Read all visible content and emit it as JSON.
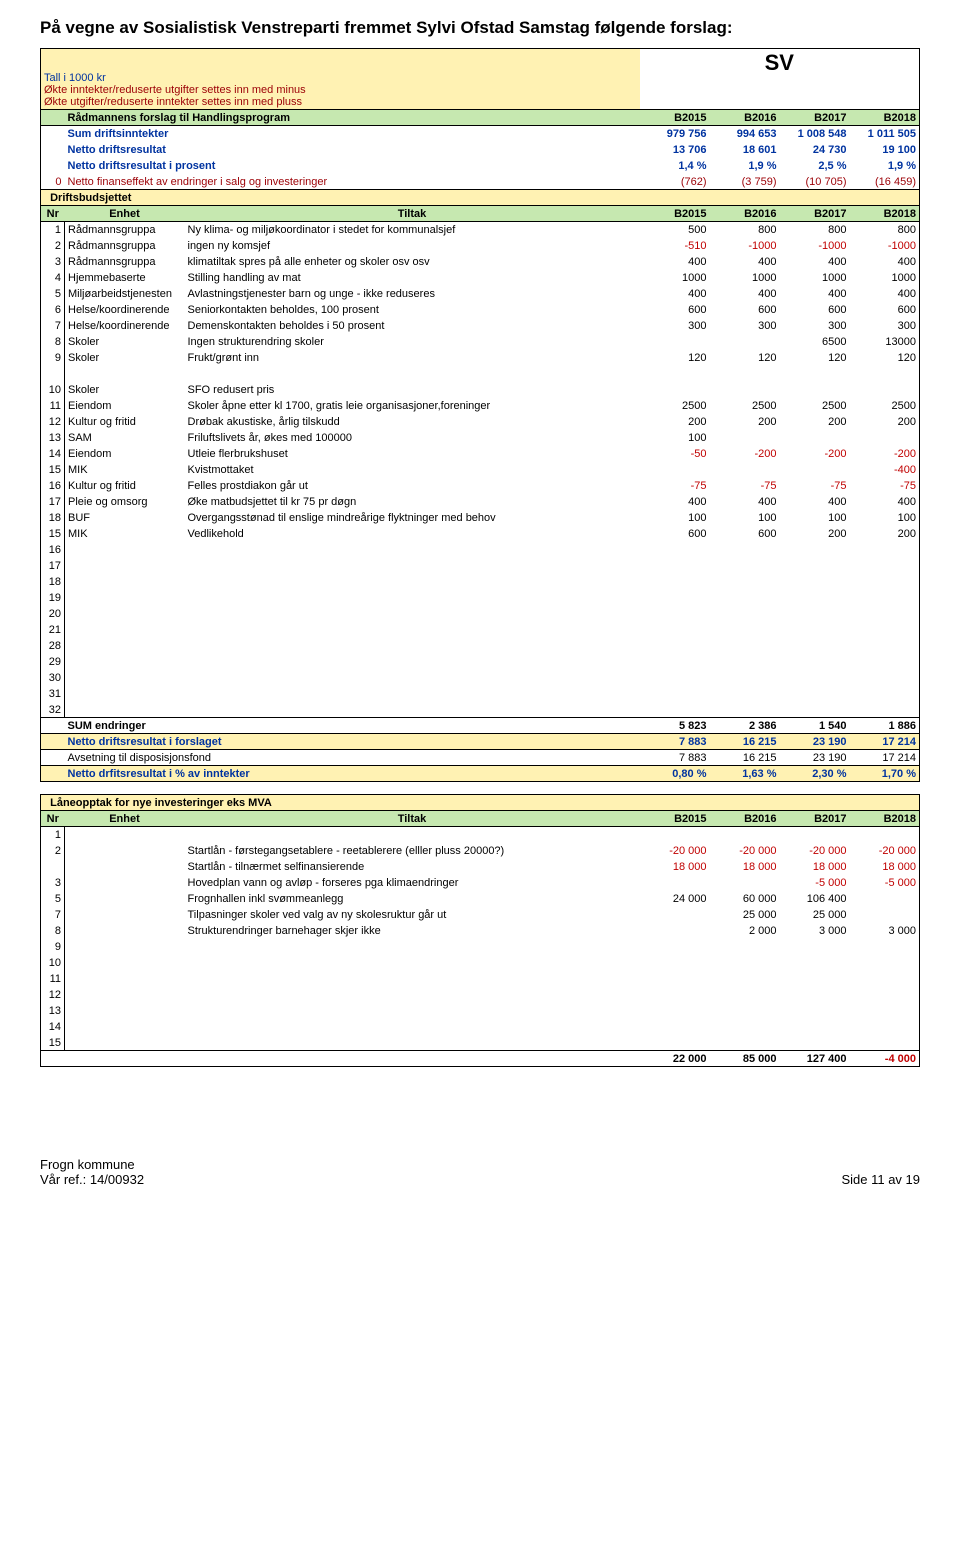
{
  "heading": "På vegne av Sosialistisk Venstreparti fremmet Sylvi Ofstad Samstag følgende forslag:",
  "sv": "SV",
  "shaded": {
    "line1": "Tall i 1000 kr",
    "line2": "Økte inntekter/reduserte utgifter settes inn med minus",
    "line3": "Økte utgifter/reduserte inntekter settes inn med pluss"
  },
  "years": {
    "y1": "B2015",
    "y2": "B2016",
    "y3": "B2017",
    "y4": "B2018"
  },
  "top": {
    "r1": {
      "label": "Rådmannens forslag til Handlingsprogram"
    },
    "r2": {
      "label": "Sum driftsinntekter",
      "v": [
        "979 756",
        "994 653",
        "1 008 548",
        "1 011 505"
      ]
    },
    "r3": {
      "label": "Netto driftsresultat",
      "v": [
        "13 706",
        "18 601",
        "24 730",
        "19 100"
      ]
    },
    "r4": {
      "label": "Netto driftsresultat i prosent",
      "v": [
        "1,4 %",
        "1,9 %",
        "2,5 %",
        "1,9 %"
      ]
    },
    "r5": {
      "n": "0",
      "label": "Netto finanseffekt av endringer i salg og investeringer",
      "v": [
        "(762)",
        "(3 759)",
        "(10 705)",
        "(16 459)"
      ]
    }
  },
  "section1_title": "Driftsbudsjettet",
  "columns": {
    "nr": "Nr",
    "enhet": "Enhet",
    "tiltak": "Tiltak"
  },
  "rows1": [
    {
      "nr": "1",
      "enhet": "Rådmannsgruppa",
      "tiltak": "Ny klima- og miljøkoordinator i stedet for kommunalsjef",
      "v": [
        "500",
        "800",
        "800",
        "800"
      ],
      "c": [
        "",
        "",
        "",
        ""
      ]
    },
    {
      "nr": "2",
      "enhet": "Rådmannsgruppa",
      "tiltak": "ingen ny komsjef",
      "v": [
        "-510",
        "-1000",
        "-1000",
        "-1000"
      ],
      "c": [
        "r",
        "r",
        "r",
        "r"
      ]
    },
    {
      "nr": "3",
      "enhet": "Rådmannsgruppa",
      "tiltak": "klimatiltak spres på alle enheter og skoler osv osv",
      "v": [
        "400",
        "400",
        "400",
        "400"
      ],
      "c": [
        "",
        "",
        "",
        ""
      ]
    },
    {
      "nr": "4",
      "enhet": "Hjemmebaserte",
      "tiltak": "Stilling handling av mat",
      "v": [
        "1000",
        "1000",
        "1000",
        "1000"
      ],
      "c": [
        "",
        "",
        "",
        ""
      ]
    },
    {
      "nr": "5",
      "enhet": "Miljøarbeidstjenesten",
      "tiltak": "Avlastningstjenester barn og unge - ikke reduseres",
      "v": [
        "400",
        "400",
        "400",
        "400"
      ],
      "c": [
        "",
        "",
        "",
        ""
      ]
    },
    {
      "nr": "6",
      "enhet": "Helse/koordinerende",
      "tiltak": "Seniorkontakten beholdes, 100 prosent",
      "v": [
        "600",
        "600",
        "600",
        "600"
      ],
      "c": [
        "",
        "",
        "",
        ""
      ]
    },
    {
      "nr": "7",
      "enhet": "Helse/koordinerende",
      "tiltak": "Demenskontakten beholdes i 50 prosent",
      "v": [
        "300",
        "300",
        "300",
        "300"
      ],
      "c": [
        "",
        "",
        "",
        ""
      ]
    },
    {
      "nr": "8",
      "enhet": "Skoler",
      "tiltak": "Ingen strukturendring skoler",
      "v": [
        "",
        "",
        "6500",
        "13000"
      ],
      "c": [
        "",
        "",
        "",
        ""
      ]
    },
    {
      "nr": "9",
      "enhet": "Skoler",
      "tiltak": "Frukt/grønt inn",
      "v": [
        "120",
        "120",
        "120",
        "120"
      ],
      "c": [
        "",
        "",
        "",
        ""
      ]
    }
  ],
  "rows2": [
    {
      "nr": "10",
      "enhet": "Skoler",
      "tiltak": "SFO redusert pris",
      "v": [
        "",
        "",
        "",
        ""
      ],
      "c": [
        "",
        "",
        "",
        ""
      ]
    },
    {
      "nr": "11",
      "enhet": "Eiendom",
      "tiltak": "Skoler åpne etter kl 1700, gratis leie organisasjoner,foreninger",
      "v": [
        "2500",
        "2500",
        "2500",
        "2500"
      ],
      "c": [
        "",
        "",
        "",
        ""
      ]
    },
    {
      "nr": "12",
      "enhet": "Kultur og fritid",
      "tiltak": "Drøbak akustiske, årlig tilskudd",
      "v": [
        "200",
        "200",
        "200",
        "200"
      ],
      "c": [
        "",
        "",
        "",
        ""
      ]
    },
    {
      "nr": "13",
      "enhet": "SAM",
      "tiltak": "Friluftslivets år, økes med 100000",
      "v": [
        "100",
        "",
        "",
        ""
      ],
      "c": [
        "",
        "",
        "",
        ""
      ]
    },
    {
      "nr": "14",
      "enhet": "Eiendom",
      "tiltak": "Utleie flerbrukshuset",
      "v": [
        "-50",
        "-200",
        "-200",
        "-200"
      ],
      "c": [
        "r",
        "r",
        "r",
        "r"
      ]
    },
    {
      "nr": "15",
      "enhet": "MIK",
      "tiltak": "Kvistmottaket",
      "v": [
        "",
        "",
        "",
        "-400"
      ],
      "c": [
        "",
        "",
        "",
        "r"
      ]
    },
    {
      "nr": "16",
      "enhet": "Kultur og fritid",
      "tiltak": "Felles prostdiakon går ut",
      "v": [
        "-75",
        "-75",
        "-75",
        "-75"
      ],
      "c": [
        "r",
        "r",
        "r",
        "r"
      ]
    },
    {
      "nr": "17",
      "enhet": "Pleie og omsorg",
      "tiltak": "Øke matbudsjettet til kr 75 pr døgn",
      "v": [
        "400",
        "400",
        "400",
        "400"
      ],
      "c": [
        "",
        "",
        "",
        ""
      ]
    },
    {
      "nr": "18",
      "enhet": "BUF",
      "tiltak": "Overgangsstønad til enslige mindreårige flyktninger med behov",
      "v": [
        "100",
        "100",
        "100",
        "100"
      ],
      "c": [
        "",
        "",
        "",
        ""
      ]
    },
    {
      "nr": "15",
      "enhet": "MIK",
      "tiltak": "Vedlikehold",
      "v": [
        "600",
        "600",
        "200",
        "200"
      ],
      "c": [
        "",
        "",
        "",
        ""
      ]
    },
    {
      "nr": "16",
      "enhet": "",
      "tiltak": "",
      "v": [
        "",
        "",
        "",
        ""
      ],
      "c": [
        "",
        "",
        "",
        ""
      ]
    },
    {
      "nr": "17",
      "enhet": "",
      "tiltak": "",
      "v": [
        "",
        "",
        "",
        ""
      ],
      "c": [
        "",
        "",
        "",
        ""
      ]
    },
    {
      "nr": "18",
      "enhet": "",
      "tiltak": "",
      "v": [
        "",
        "",
        "",
        ""
      ],
      "c": [
        "",
        "",
        "",
        ""
      ]
    },
    {
      "nr": "19",
      "enhet": "",
      "tiltak": "",
      "v": [
        "",
        "",
        "",
        ""
      ],
      "c": [
        "",
        "",
        "",
        ""
      ]
    },
    {
      "nr": "20",
      "enhet": "",
      "tiltak": "",
      "v": [
        "",
        "",
        "",
        ""
      ],
      "c": [
        "",
        "",
        "",
        ""
      ]
    },
    {
      "nr": "21",
      "enhet": "",
      "tiltak": "",
      "v": [
        "",
        "",
        "",
        ""
      ],
      "c": [
        "",
        "",
        "",
        ""
      ]
    },
    {
      "nr": "28",
      "enhet": "",
      "tiltak": "",
      "v": [
        "",
        "",
        "",
        ""
      ],
      "c": [
        "",
        "",
        "",
        ""
      ]
    },
    {
      "nr": "29",
      "enhet": "",
      "tiltak": "",
      "v": [
        "",
        "",
        "",
        ""
      ],
      "c": [
        "",
        "",
        "",
        ""
      ]
    },
    {
      "nr": "30",
      "enhet": "",
      "tiltak": "",
      "v": [
        "",
        "",
        "",
        ""
      ],
      "c": [
        "",
        "",
        "",
        ""
      ]
    },
    {
      "nr": "31",
      "enhet": "",
      "tiltak": "",
      "v": [
        "",
        "",
        "",
        ""
      ],
      "c": [
        "",
        "",
        "",
        ""
      ]
    },
    {
      "nr": "32",
      "enhet": "",
      "tiltak": "",
      "v": [
        "",
        "",
        "",
        ""
      ],
      "c": [
        "",
        "",
        "",
        ""
      ]
    }
  ],
  "sum": {
    "sum_label": "SUM endringer",
    "sum_v": [
      "5 823",
      "2 386",
      "1 540",
      "1 886"
    ],
    "netto_label": "Netto driftsresultat i forslaget",
    "netto_v": [
      "7 883",
      "16 215",
      "23 190",
      "17 214"
    ],
    "av_label": "Avsetning til disposisjonsfond",
    "av_v": [
      "7 883",
      "16 215",
      "23 190",
      "17 214"
    ],
    "pct_label": "Netto drfitsresultat i % av inntekter",
    "pct_v": [
      "0,80 %",
      "1,63 %",
      "2,30 %",
      "1,70 %"
    ]
  },
  "loan": {
    "title": "Låneopptak for nye investeringer eks MVA",
    "rows": [
      {
        "nr": "1",
        "enhet": "",
        "tiltak": "",
        "v": [
          "",
          "",
          "",
          ""
        ],
        "c": [
          "",
          "",
          "",
          ""
        ]
      },
      {
        "nr": "2",
        "enhet": "",
        "tiltak": "Startlån - førstegangsetablere - reetablerere (elller pluss 20000?)",
        "v": [
          "-20 000",
          "-20 000",
          "-20 000",
          "-20 000"
        ],
        "c": [
          "r",
          "r",
          "r",
          "r"
        ]
      },
      {
        "nr": "",
        "enhet": "",
        "tiltak": "Startlån - tilnærmet selfinansierende",
        "v": [
          "18 000",
          "18 000",
          "18 000",
          "18 000"
        ],
        "c": [
          "r",
          "r",
          "r",
          "r"
        ]
      },
      {
        "nr": "3",
        "enhet": "",
        "tiltak": "Hovedplan vann og avløp - forseres pga klimaendringer",
        "v": [
          "",
          "",
          "-5 000",
          "-5 000"
        ],
        "c": [
          "",
          "",
          "r",
          "r"
        ]
      },
      {
        "nr": "5",
        "enhet": "",
        "tiltak": "Frognhallen inkl svømmeanlegg",
        "v": [
          "24 000",
          "60 000",
          "106 400",
          ""
        ],
        "c": [
          "",
          "",
          "",
          ""
        ]
      },
      {
        "nr": "7",
        "enhet": "",
        "tiltak": "Tilpasninger skoler ved valg av ny skolesruktur går ut",
        "v": [
          "",
          "25 000",
          "25 000",
          ""
        ],
        "c": [
          "",
          "",
          "",
          ""
        ]
      },
      {
        "nr": "8",
        "enhet": "",
        "tiltak": "Strukturendringer barnehager skjer ikke",
        "v": [
          "",
          "2 000",
          "3 000",
          "3 000"
        ],
        "c": [
          "",
          "",
          "",
          "x"
        ]
      },
      {
        "nr": "9",
        "enhet": "",
        "tiltak": "",
        "v": [
          "",
          "",
          "",
          ""
        ],
        "c": [
          "",
          "",
          "",
          ""
        ]
      },
      {
        "nr": "10",
        "enhet": "",
        "tiltak": "",
        "v": [
          "",
          "",
          "",
          ""
        ],
        "c": [
          "",
          "",
          "",
          ""
        ]
      },
      {
        "nr": "11",
        "enhet": "",
        "tiltak": "",
        "v": [
          "",
          "",
          "",
          ""
        ],
        "c": [
          "",
          "",
          "",
          ""
        ]
      },
      {
        "nr": "12",
        "enhet": "",
        "tiltak": "",
        "v": [
          "",
          "",
          "",
          ""
        ],
        "c": [
          "",
          "",
          "",
          ""
        ]
      },
      {
        "nr": "13",
        "enhet": "",
        "tiltak": "",
        "v": [
          "",
          "",
          "",
          ""
        ],
        "c": [
          "",
          "",
          "",
          ""
        ]
      },
      {
        "nr": "14",
        "enhet": "",
        "tiltak": "",
        "v": [
          "",
          "",
          "",
          ""
        ],
        "c": [
          "",
          "",
          "",
          ""
        ]
      },
      {
        "nr": "15",
        "enhet": "",
        "tiltak": "",
        "v": [
          "",
          "",
          "",
          ""
        ],
        "c": [
          "",
          "",
          "",
          ""
        ]
      }
    ],
    "sum_v": [
      "22 000",
      "85 000",
      "127 400",
      "-4 000"
    ],
    "sum_c": [
      "",
      "",
      "",
      "r"
    ]
  },
  "footer": {
    "left1": "Frogn kommune",
    "left2": "Vår ref.:  14/00932",
    "right": "Side 11 av 19"
  }
}
